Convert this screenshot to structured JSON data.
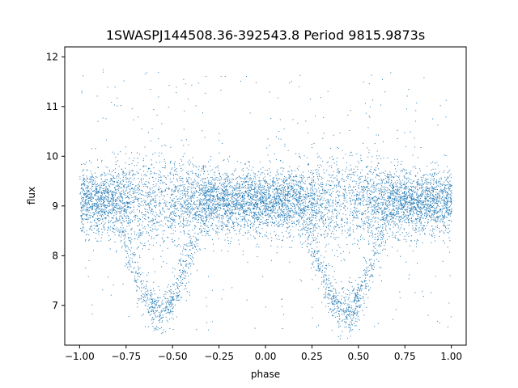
{
  "chart_data": {
    "type": "scatter",
    "title": "1SWASPJ144508.36-392543.8 Period 9815.9873s",
    "xlabel": "phase",
    "ylabel": "flux",
    "xlim": [
      -1.08,
      1.08
    ],
    "ylim": [
      6.2,
      12.2
    ],
    "x_ticks": [
      -1.0,
      -0.75,
      -0.5,
      -0.25,
      0.0,
      0.25,
      0.5,
      0.75,
      1.0
    ],
    "x_tick_labels": [
      "−1.00",
      "−0.75",
      "−0.50",
      "−0.25",
      "0.00",
      "0.25",
      "0.50",
      "0.75",
      "1.00"
    ],
    "y_ticks": [
      7,
      8,
      9,
      10,
      11,
      12
    ],
    "y_tick_labels": [
      "7",
      "8",
      "9",
      "10",
      "11",
      "12"
    ],
    "grid": false,
    "marker_color": "#1f77b4",
    "phase_range": [
      -1.0,
      1.0
    ],
    "baseline_flux": 9.1,
    "eclipse_min_flux": 6.9,
    "eclipse_phases": [
      -0.57,
      0.43
    ],
    "series": [
      {
        "x_sample": [
          -1.0,
          -0.9,
          -0.8,
          -0.7,
          -0.65,
          -0.6,
          -0.57,
          -0.5,
          -0.45,
          -0.4,
          -0.3,
          -0.2,
          -0.1,
          0.0,
          0.1,
          0.2,
          0.3,
          0.35,
          0.4,
          0.43,
          0.5,
          0.55,
          0.6,
          0.7,
          0.8,
          0.9,
          1.0
        ],
        "y_sample": [
          9.1,
          9.1,
          9.0,
          8.3,
          7.6,
          7.1,
          6.9,
          7.2,
          7.7,
          8.3,
          9.0,
          9.1,
          9.1,
          9.1,
          9.1,
          9.0,
          8.3,
          7.6,
          7.1,
          6.9,
          7.2,
          7.7,
          8.3,
          9.0,
          9.1,
          9.1,
          9.1
        ]
      }
    ]
  }
}
